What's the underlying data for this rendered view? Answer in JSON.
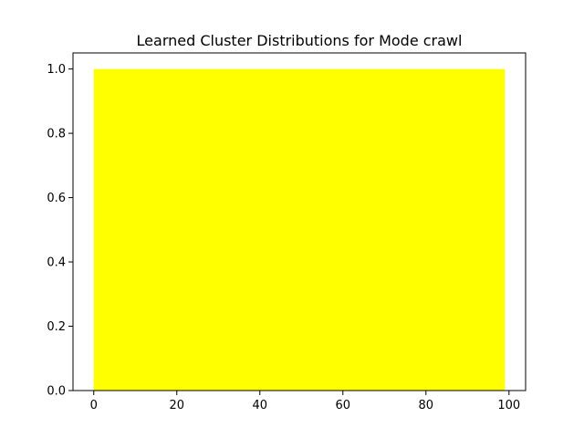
{
  "chart_data": {
    "type": "area",
    "title": "Learned Cluster Distributions for Mode crawl",
    "xlabel": "",
    "ylabel": "",
    "xlim": [
      -5,
      104
    ],
    "ylim": [
      0,
      1.05
    ],
    "x_ticks": [
      0,
      20,
      40,
      60,
      80,
      100
    ],
    "x_tick_labels": [
      "0",
      "20",
      "40",
      "60",
      "80",
      "100"
    ],
    "y_ticks": [
      0.0,
      0.2,
      0.4,
      0.6,
      0.8,
      1.0
    ],
    "y_tick_labels": [
      "0.0",
      "0.2",
      "0.4",
      "0.6",
      "0.8",
      "1.0"
    ],
    "grid": false,
    "series": [
      {
        "color": "#ffff00",
        "x": [
          0,
          99
        ],
        "y_lower": [
          0,
          0
        ],
        "y_upper": [
          1.0,
          1.0
        ]
      }
    ]
  }
}
